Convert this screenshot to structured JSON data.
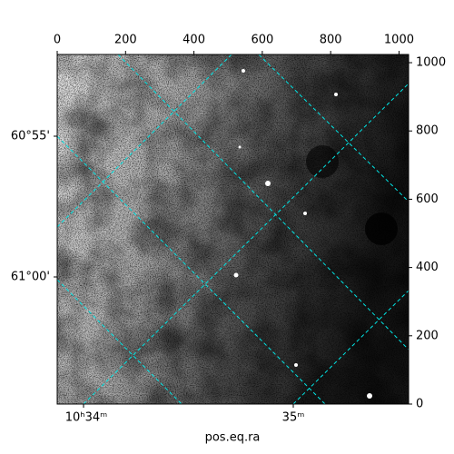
{
  "chart_data": {
    "type": "image",
    "xlabel": "pos.eq.ra",
    "ra_ticks": [
      "10ʰ34ᵐ",
      "35ᵐ"
    ],
    "dec_ticks": [
      "60°55'",
      "61°00'"
    ],
    "xlim": [
      0,
      1028
    ],
    "xticks": [
      0,
      200,
      400,
      600,
      800,
      1000
    ],
    "ylim": [
      0,
      1024
    ],
    "yticks": [
      0,
      200,
      400,
      600,
      800,
      1000
    ]
  }
}
